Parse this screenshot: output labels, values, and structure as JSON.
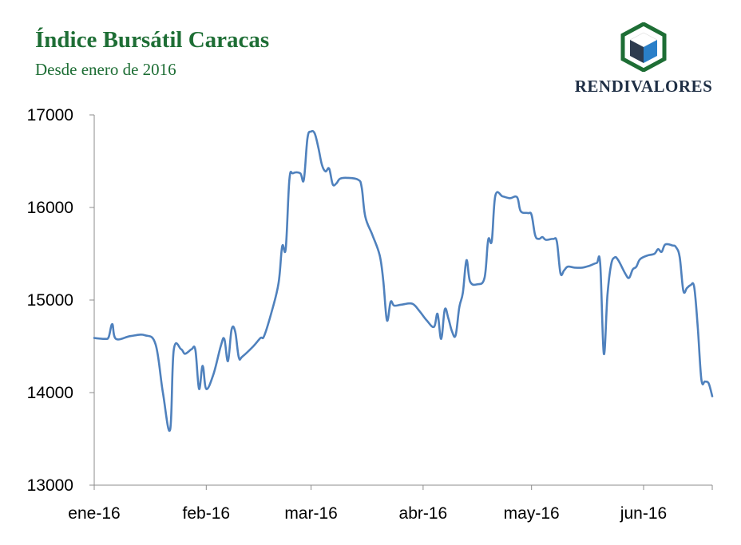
{
  "header": {
    "title": "Índice Bursátil Caracas",
    "subtitle": "Desde enero de 2016"
  },
  "logo": {
    "name": "RENDIVALORES",
    "icon": "cube-hexagon-icon",
    "colors": {
      "hexagon": "#1e6e35",
      "cube_left": "#2d3b4f",
      "cube_right": "#2a7fc8",
      "cube_top": "#ffffff"
    }
  },
  "chart_data": {
    "type": "line",
    "title": "Índice Bursátil Caracas",
    "subtitle": "Desde enero de 2016",
    "xlabel": "",
    "ylabel": "",
    "ylim": [
      13000,
      17000
    ],
    "yticks": [
      13000,
      14000,
      15000,
      16000,
      17000
    ],
    "xticks": [
      "ene-16",
      "feb-16",
      "mar-16",
      "abr-16",
      "may-16",
      "jun-16"
    ],
    "xlim": [
      "2016-01-01",
      "2016-06-19"
    ],
    "grid": false,
    "legend": "none",
    "line_color": "#4f81bd",
    "series": [
      {
        "points": [
          [
            "2016-01-01",
            14590
          ],
          [
            "2016-01-04",
            14580
          ],
          [
            "2016-01-05",
            14600
          ],
          [
            "2016-01-06",
            14740
          ],
          [
            "2016-01-07",
            14580
          ],
          [
            "2016-01-11",
            14610
          ],
          [
            "2016-01-15",
            14620
          ],
          [
            "2016-01-18",
            14520
          ],
          [
            "2016-01-20",
            14000
          ],
          [
            "2016-01-22",
            13600
          ],
          [
            "2016-01-23",
            14460
          ],
          [
            "2016-01-25",
            14470
          ],
          [
            "2016-01-26",
            14420
          ],
          [
            "2016-01-27",
            14440
          ],
          [
            "2016-01-28",
            14470
          ],
          [
            "2016-01-29",
            14460
          ],
          [
            "2016-01-30",
            14040
          ],
          [
            "2016-01-31",
            14290
          ],
          [
            "2016-02-01",
            14040
          ],
          [
            "2016-02-03",
            14200
          ],
          [
            "2016-02-05",
            14500
          ],
          [
            "2016-02-06",
            14580
          ],
          [
            "2016-02-07",
            14340
          ],
          [
            "2016-02-08",
            14680
          ],
          [
            "2016-02-09",
            14660
          ],
          [
            "2016-02-10",
            14380
          ],
          [
            "2016-02-11",
            14390
          ],
          [
            "2016-02-14",
            14500
          ],
          [
            "2016-02-16",
            14590
          ],
          [
            "2016-02-17",
            14610
          ],
          [
            "2016-02-19",
            14860
          ],
          [
            "2016-02-21",
            15180
          ],
          [
            "2016-02-22",
            15580
          ],
          [
            "2016-02-23",
            15560
          ],
          [
            "2016-02-24",
            16300
          ],
          [
            "2016-02-25",
            16370
          ],
          [
            "2016-02-27",
            16370
          ],
          [
            "2016-02-28",
            16300
          ],
          [
            "2016-02-29",
            16750
          ],
          [
            "2016-03-01",
            16820
          ],
          [
            "2016-03-02",
            16800
          ],
          [
            "2016-03-03",
            16650
          ],
          [
            "2016-03-04",
            16460
          ],
          [
            "2016-03-05",
            16390
          ],
          [
            "2016-03-06",
            16420
          ],
          [
            "2016-03-07",
            16250
          ],
          [
            "2016-03-08",
            16260
          ],
          [
            "2016-03-09",
            16310
          ],
          [
            "2016-03-11",
            16320
          ],
          [
            "2016-03-14",
            16300
          ],
          [
            "2016-03-15",
            16220
          ],
          [
            "2016-03-16",
            15900
          ],
          [
            "2016-03-18",
            15700
          ],
          [
            "2016-03-20",
            15480
          ],
          [
            "2016-03-21",
            15200
          ],
          [
            "2016-03-22",
            14780
          ],
          [
            "2016-03-23",
            14980
          ],
          [
            "2016-03-24",
            14940
          ],
          [
            "2016-03-26",
            14950
          ],
          [
            "2016-03-29",
            14960
          ],
          [
            "2016-03-31",
            14880
          ],
          [
            "2016-04-02",
            14780
          ],
          [
            "2016-04-04",
            14710
          ],
          [
            "2016-04-05",
            14850
          ],
          [
            "2016-04-06",
            14580
          ],
          [
            "2016-04-07",
            14900
          ],
          [
            "2016-04-08",
            14800
          ],
          [
            "2016-04-09",
            14660
          ],
          [
            "2016-04-10",
            14620
          ],
          [
            "2016-04-11",
            14920
          ],
          [
            "2016-04-12",
            15080
          ],
          [
            "2016-04-13",
            15430
          ],
          [
            "2016-04-14",
            15200
          ],
          [
            "2016-04-16",
            15170
          ],
          [
            "2016-04-18",
            15240
          ],
          [
            "2016-04-19",
            15650
          ],
          [
            "2016-04-20",
            15640
          ],
          [
            "2016-04-21",
            16130
          ],
          [
            "2016-04-23",
            16120
          ],
          [
            "2016-04-25",
            16100
          ],
          [
            "2016-04-27",
            16110
          ],
          [
            "2016-04-28",
            15960
          ],
          [
            "2016-04-30",
            15940
          ],
          [
            "2016-05-01",
            15920
          ],
          [
            "2016-05-02",
            15700
          ],
          [
            "2016-05-03",
            15660
          ],
          [
            "2016-05-04",
            15680
          ],
          [
            "2016-05-05",
            15650
          ],
          [
            "2016-05-07",
            15660
          ],
          [
            "2016-05-08",
            15630
          ],
          [
            "2016-05-09",
            15290
          ],
          [
            "2016-05-10",
            15320
          ],
          [
            "2016-05-11",
            15360
          ],
          [
            "2016-05-13",
            15350
          ],
          [
            "2016-05-15",
            15350
          ],
          [
            "2016-05-17",
            15370
          ],
          [
            "2016-05-19",
            15400
          ],
          [
            "2016-05-20",
            15390
          ],
          [
            "2016-05-21",
            14420
          ],
          [
            "2016-05-22",
            15050
          ],
          [
            "2016-05-23",
            15380
          ],
          [
            "2016-05-24",
            15460
          ],
          [
            "2016-05-25",
            15430
          ],
          [
            "2016-05-27",
            15280
          ],
          [
            "2016-05-28",
            15240
          ],
          [
            "2016-05-29",
            15330
          ],
          [
            "2016-05-30",
            15360
          ],
          [
            "2016-05-31",
            15440
          ],
          [
            "2016-06-02",
            15480
          ],
          [
            "2016-06-04",
            15500
          ],
          [
            "2016-06-05",
            15550
          ],
          [
            "2016-06-06",
            15520
          ],
          [
            "2016-06-07",
            15600
          ],
          [
            "2016-06-09",
            15590
          ],
          [
            "2016-06-10",
            15570
          ],
          [
            "2016-06-11",
            15460
          ],
          [
            "2016-06-12",
            15100
          ],
          [
            "2016-06-13",
            15130
          ],
          [
            "2016-06-14",
            15160
          ],
          [
            "2016-06-15",
            15140
          ],
          [
            "2016-06-16",
            14700
          ],
          [
            "2016-06-17",
            14140
          ],
          [
            "2016-06-18",
            14120
          ],
          [
            "2016-06-19",
            14100
          ],
          [
            "2016-06-20",
            13960
          ]
        ]
      }
    ]
  }
}
